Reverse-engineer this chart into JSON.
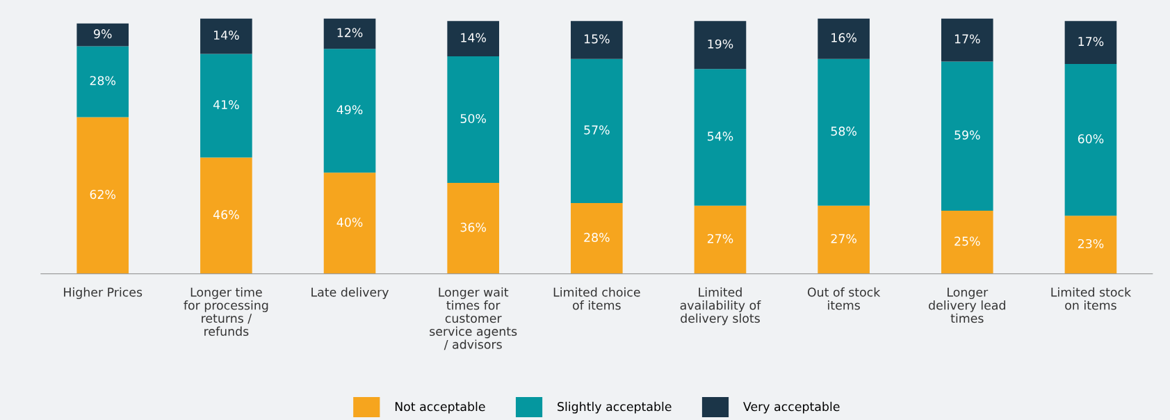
{
  "chart_data": {
    "type": "bar",
    "stacked": true,
    "legend": "bottom",
    "grid": false,
    "tick_labels": "x",
    "categories": [
      "Higher Prices",
      "Longer time\nfor processing\nreturns /\nrefunds",
      "Late delivery",
      "Longer wait\ntimes for\ncustomer\nservice agents\n/ advisors",
      "Limited choice\nof items",
      "Limited\navailability of\ndelivery slots",
      "Out of stock\nitems",
      "Longer\ndelivery lead\ntimes",
      "Limited stock\non items"
    ],
    "series": [
      {
        "name": "Not acceptable",
        "color": "#f6a51e",
        "values": [
          62,
          46,
          40,
          36,
          28,
          27,
          27,
          25,
          23
        ],
        "value_labels": [
          "62%",
          "46%",
          "40%",
          "36%",
          "28%",
          "27%",
          "27%",
          "25%",
          "23%"
        ]
      },
      {
        "name": "Slightly acceptable",
        "color": "#05979f",
        "values": [
          28,
          41,
          49,
          50,
          57,
          54,
          58,
          59,
          60
        ],
        "value_labels": [
          "28%",
          "41%",
          "49%",
          "50%",
          "57%",
          "54%",
          "58%",
          "59%",
          "60%"
        ]
      },
      {
        "name": "Very acceptable",
        "color": "#1b3548",
        "values": [
          9,
          14,
          12,
          14,
          15,
          19,
          16,
          17,
          17
        ],
        "value_labels": [
          "9%",
          "14%",
          "12%",
          "14%",
          "15%",
          "19%",
          "16%",
          "17%",
          "17%"
        ]
      }
    ]
  }
}
